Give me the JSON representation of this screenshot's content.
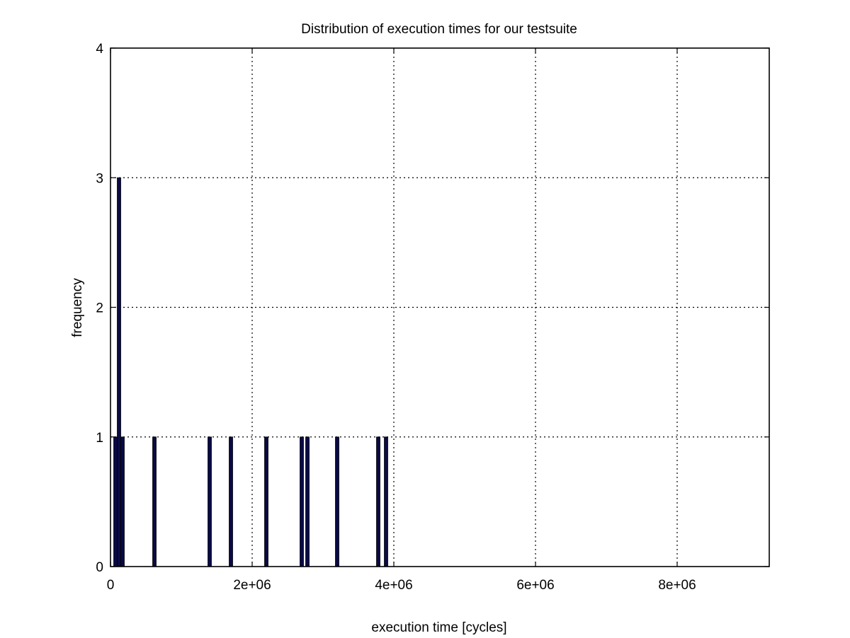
{
  "chart_data": {
    "type": "bar",
    "title": "Distribution of execution times for our testsuite",
    "xlabel": "execution time [cycles]",
    "ylabel": "frequency",
    "xlim": [
      0,
      9300000
    ],
    "ylim": [
      0,
      4
    ],
    "grid": true,
    "x_ticks": [
      0,
      2000000,
      4000000,
      6000000,
      8000000
    ],
    "x_tick_labels": [
      "0",
      "2e+06",
      "4e+06",
      "6e+06",
      "8e+06"
    ],
    "y_ticks": [
      0,
      1,
      2,
      3,
      4
    ],
    "y_tick_labels": [
      "0",
      "1",
      "2",
      "3",
      "4"
    ],
    "bar_color": "#0a0a46",
    "series": [
      {
        "x": [
          70000,
          120000,
          170000,
          620000,
          1400000,
          1700000,
          2200000,
          2700000,
          2780000,
          3200000,
          3780000,
          3890000
        ],
        "values": [
          1,
          3,
          1,
          1,
          1,
          1,
          1,
          1,
          1,
          1,
          1,
          1
        ]
      }
    ]
  }
}
